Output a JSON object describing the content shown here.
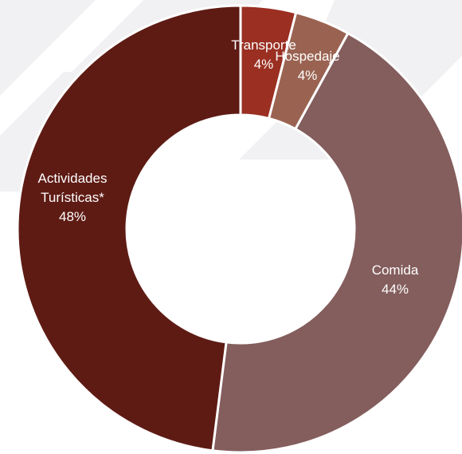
{
  "chart_data": {
    "type": "pie",
    "variant": "donut",
    "title": "",
    "legend": "none",
    "categories": [
      "Transporte",
      "Hospedaje",
      "Comida",
      "Actividades Turísticas*"
    ],
    "values": [
      4,
      4,
      44,
      48
    ],
    "percent_labels": [
      "4%",
      "4%",
      "44%",
      "48%"
    ],
    "label_lines": [
      [
        "Transporte",
        "4%"
      ],
      [
        "Hospedaje",
        "4%"
      ],
      [
        "Comida",
        "44%"
      ],
      [
        "Actividades",
        "Turísticas*",
        "48%"
      ]
    ],
    "colors": [
      "#9a2f22",
      "#9a6351",
      "#845d5d",
      "#5e1b14"
    ],
    "background_color": "#ffffff"
  }
}
